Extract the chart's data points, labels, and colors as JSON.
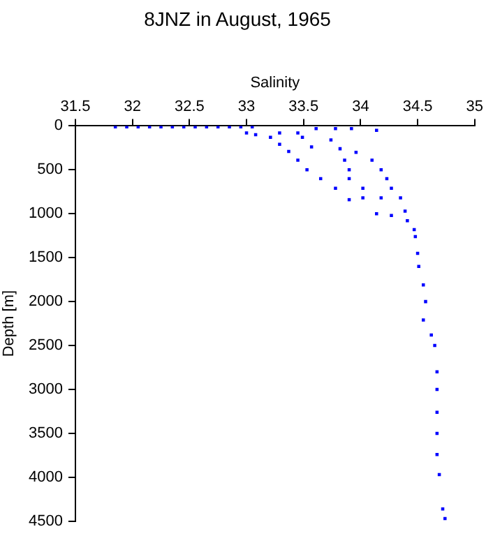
{
  "chart_data": {
    "type": "scatter",
    "title": "8JNZ in August, 1965",
    "xlabel": "Salinity",
    "ylabel": "Depth [m]",
    "xlim": [
      31.5,
      35
    ],
    "xticks": [
      31.5,
      32,
      32.5,
      33,
      33.5,
      34,
      34.5,
      35
    ],
    "ylim": [
      4500,
      0
    ],
    "yticks": [
      0,
      500,
      1000,
      1500,
      2000,
      2500,
      3000,
      3500,
      4000,
      4500
    ],
    "grid": false,
    "marker": "square",
    "legend": false,
    "series": [
      {
        "color": "#0000ff",
        "x": [
          31.85,
          31.95,
          32.05,
          32.15,
          32.25,
          32.35,
          32.45,
          32.55,
          32.65,
          32.75,
          32.85,
          32.95,
          33.05,
          33.0,
          33.29,
          33.45,
          33.61,
          33.78,
          33.92,
          34.14,
          33.08,
          33.21,
          33.49,
          33.74,
          33.29,
          33.37,
          33.57,
          33.82,
          33.96,
          33.45,
          33.86,
          34.1,
          33.53,
          33.9,
          34.18,
          33.65,
          33.9,
          34.23,
          33.78,
          34.02,
          34.27,
          33.9,
          34.02,
          34.18,
          34.35,
          34.14,
          34.27,
          34.39,
          34.41,
          34.47,
          34.48,
          34.5,
          34.51,
          34.55,
          34.57,
          34.55,
          34.62,
          34.65,
          34.67,
          34.67,
          34.67,
          34.67,
          34.67,
          34.69,
          34.72,
          34.74
        ],
        "values": [
          10,
          10,
          10,
          10,
          10,
          10,
          10,
          10,
          10,
          10,
          10,
          10,
          10,
          80,
          80,
          80,
          30,
          30,
          30,
          50,
          100,
          130,
          130,
          160,
          210,
          290,
          240,
          260,
          300,
          390,
          390,
          390,
          500,
          500,
          500,
          600,
          600,
          600,
          710,
          710,
          710,
          840,
          820,
          820,
          820,
          1000,
          1020,
          970,
          1080,
          1180,
          1260,
          1450,
          1600,
          1810,
          2000,
          2210,
          2380,
          2500,
          2800,
          3000,
          3260,
          3500,
          3740,
          3970,
          4360,
          4470
        ]
      }
    ]
  }
}
